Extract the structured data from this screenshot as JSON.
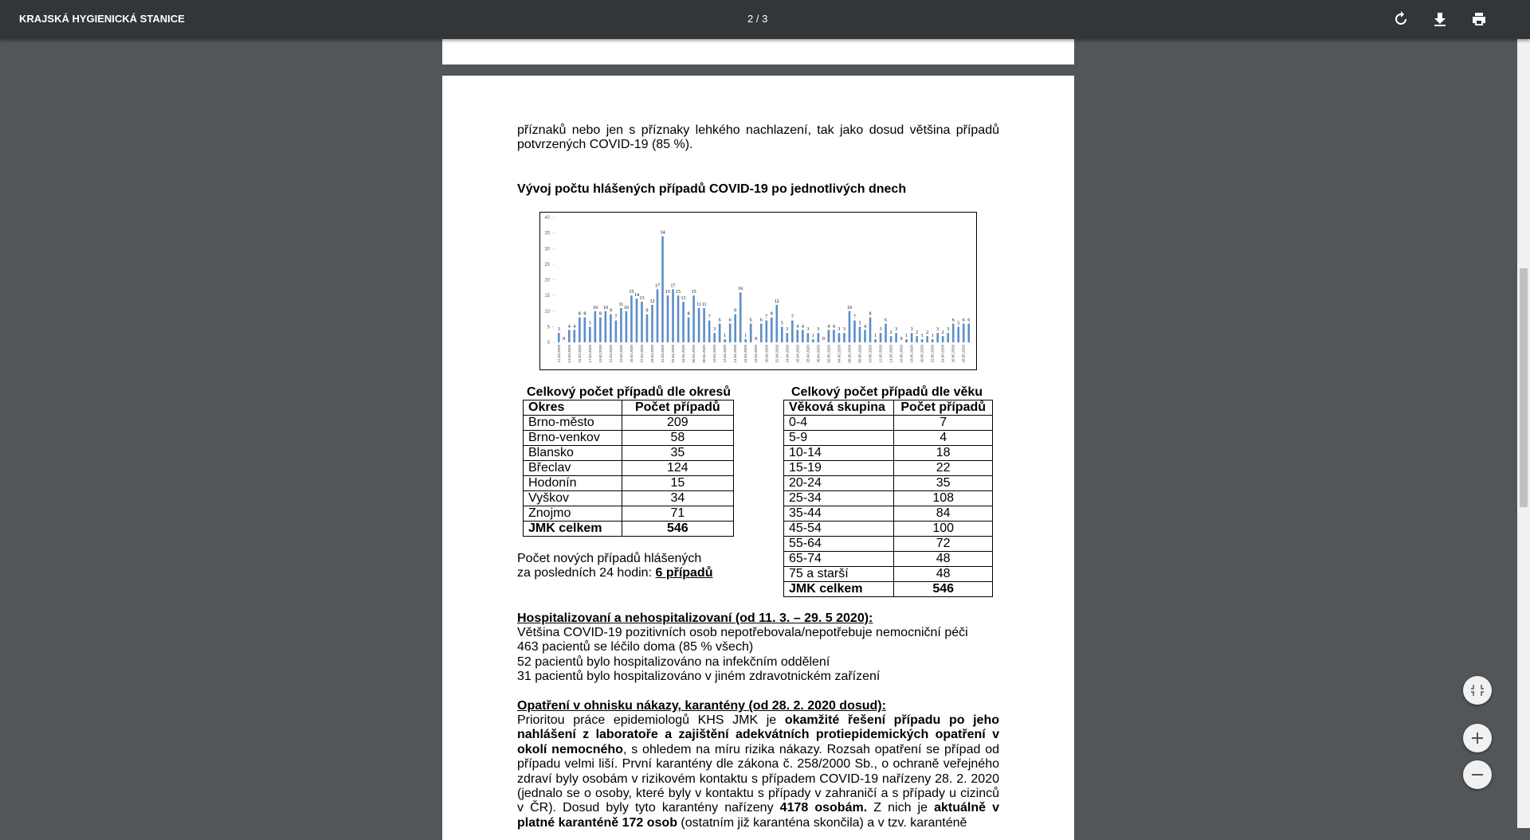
{
  "toolbar": {
    "title": "KRAJSKÁ HYGIENICKÁ STANICE",
    "page_indicator": "2 / 3"
  },
  "document": {
    "paragraph": "příznaků nebo jen s příznaky lehkého nachlazení, tak jako dosud většina případů potvrzených COVID-19 (85 %).",
    "chart_heading": "Vývoj počtu hlášených případů COVID-19 po jednotlivých dnech",
    "district_table": {
      "title": "Celkový počet případů dle okresů",
      "header": [
        "Okres",
        "Počet případů"
      ],
      "rows": [
        [
          "Brno-město",
          209
        ],
        [
          "Brno-venkov",
          58
        ],
        [
          "Blansko",
          35
        ],
        [
          "Břeclav",
          124
        ],
        [
          "Hodonín",
          15
        ],
        [
          "Vyškov",
          34
        ],
        [
          "Znojmo",
          71
        ],
        [
          "JMK celkem",
          546
        ]
      ]
    },
    "age_table": {
      "title": "Celkový počet případů dle věku",
      "header": [
        "Věková skupina",
        "Počet případů"
      ],
      "rows": [
        [
          "0-4",
          7
        ],
        [
          "5-9",
          4
        ],
        [
          "10-14",
          18
        ],
        [
          "15-19",
          22
        ],
        [
          "20-24",
          35
        ],
        [
          "25-34",
          108
        ],
        [
          "35-44",
          84
        ],
        [
          "45-54",
          100
        ],
        [
          "55-64",
          72
        ],
        [
          "65-74",
          48
        ],
        [
          "75 a starší",
          48
        ],
        [
          "JMK celkem",
          546
        ]
      ]
    },
    "new_cases": {
      "line1": "Počet nových případů hlášených",
      "line2": "za posledních 24 hodin: ",
      "emphasis": "6 případů"
    },
    "hospital": {
      "heading": "Hospitalizovaní a nehospitalizovaní (od 11. 3. – 29. 5 2020):",
      "lines": [
        "Většina COVID-19 pozitivních osob nepotřebovala/nepotřebuje nemocniční péči",
        "463 pacientů se léčilo doma (85 % všech)",
        "52 pacientů bylo hospitalizováno na infekčním oddělení",
        "31 pacientů bylo hospitalizováno v jiném zdravotnickém zařízení"
      ]
    },
    "measures": {
      "heading": "Opatření v ohnisku nákazy, karantény (od 28. 2. 2020 dosud):",
      "runs": [
        {
          "text": "Prioritou práce epidemiologů KHS JMK je ",
          "bold": false
        },
        {
          "text": "okamžité řešení případu po jeho nahlášení z laboratoře a zajištění adekvátních protiepidemických opatření v okolí nemocného",
          "bold": true
        },
        {
          "text": ", s ohledem na míru rizika nákazy. Rozsah opatření se případ od případu velmi liší. První karantény dle zákona č. 258/2000 Sb., o ochraně veřejného zdraví byly osobám v rizikovém kontaktu s případem COVID-19 nařízeny 28. 2. 2020 (jednalo se o osoby, které byly v kontaktu s případy v zahraničí a s případy u cizinců v ČR). Dosud byly tyto karantény nařízeny ",
          "bold": false
        },
        {
          "text": "4178 osobám.",
          "bold": true
        },
        {
          "text": " Z nich je ",
          "bold": false
        },
        {
          "text": "aktuálně v platné karanténě 172 osob",
          "bold": true
        },
        {
          "text": " (ostatním již karanténa skončila) a v tzv. karanténě",
          "bold": false
        }
      ]
    }
  },
  "chart_data": {
    "type": "bar",
    "color": "#5b8ec8",
    "ylim": [
      0,
      40
    ],
    "yticks": [
      0,
      5,
      10,
      15,
      20,
      25,
      30,
      35,
      40
    ],
    "categories": [
      "11.03.2020",
      null,
      "13.03.2020",
      null,
      "15.03.2020",
      null,
      "17.03.2020",
      null,
      "19.03.2020",
      null,
      "21.03.2020",
      null,
      "23.03.2020",
      null,
      "25.03.2020",
      null,
      "27.03.2020",
      null,
      "29.03.2020",
      null,
      "31.03.2020",
      null,
      "02.04.2020",
      null,
      "04.04.2020",
      null,
      "06.04.2020",
      null,
      "08.04.2020",
      null,
      "10.04.2020",
      null,
      "12.04.2020",
      null,
      "14.04.2020",
      null,
      "16.04.2020",
      null,
      "18.04.2020",
      null,
      "20.04.2020",
      null,
      "22.04.2020",
      null,
      "24.04.2020",
      null,
      "26.04.2020",
      null,
      "28.04.2020",
      null,
      "30.04.2020",
      null,
      "02.05.2020",
      null,
      "04.05.2020",
      null,
      "06.05.2020",
      null,
      "08.05.2020",
      null,
      "10.05.2020",
      null,
      "12.05.2020",
      null,
      "14.05.2020",
      null,
      "16.05.2020",
      null,
      "18.05.2020",
      null,
      "20.05.2020",
      null,
      "22.05.2020",
      null,
      "24.05.2020",
      null,
      "26.05.2020",
      null,
      "28.05.2020",
      null
    ],
    "values": [
      3,
      0,
      4,
      4,
      8,
      8,
      5,
      10,
      8,
      10,
      9,
      7,
      11,
      10,
      15,
      14,
      13,
      9,
      12,
      17,
      34,
      15,
      17,
      15,
      13,
      8,
      15,
      11,
      11,
      7,
      3,
      6,
      1,
      6,
      9,
      16,
      1,
      6,
      0,
      6,
      7,
      8,
      12,
      5,
      3,
      7,
      4,
      4,
      3,
      1,
      3,
      0,
      4,
      4,
      3,
      3,
      10,
      7,
      5,
      4,
      8,
      1,
      3,
      6,
      2,
      3,
      0,
      1,
      3,
      2,
      1,
      2,
      1,
      3,
      2,
      3,
      6,
      5,
      6,
      6
    ]
  }
}
